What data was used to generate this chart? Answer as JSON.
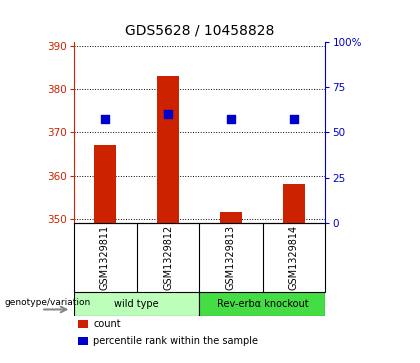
{
  "title": "GDS5628 / 10458828",
  "samples": [
    "GSM1329811",
    "GSM1329812",
    "GSM1329813",
    "GSM1329814"
  ],
  "counts": [
    367.0,
    383.0,
    351.5,
    358.0
  ],
  "percentiles": [
    57.5,
    60.0,
    57.5,
    57.5
  ],
  "ylim_left": [
    349,
    391
  ],
  "ylim_right": [
    0,
    100
  ],
  "yticks_left": [
    350,
    360,
    370,
    380,
    390
  ],
  "yticks_right": [
    0,
    25,
    50,
    75,
    100
  ],
  "bar_color": "#cc2200",
  "dot_color": "#0000cc",
  "groups": [
    {
      "label": "wild type",
      "indices": [
        0,
        1
      ],
      "color": "#bbffbb"
    },
    {
      "label": "Rev-erbα knockout",
      "indices": [
        2,
        3
      ],
      "color": "#44dd44"
    }
  ],
  "genotype_label": "genotype/variation",
  "legend_items": [
    {
      "label": "count",
      "color": "#cc2200"
    },
    {
      "label": "percentile rank within the sample",
      "color": "#0000cc"
    }
  ],
  "plot_bg": "#ffffff",
  "sample_bg": "#d0d0d0",
  "fig_bg": "#ffffff",
  "bar_width": 0.35,
  "dot_size": 35,
  "title_fontsize": 10,
  "label_fontsize": 7,
  "tick_fontsize": 7.5
}
